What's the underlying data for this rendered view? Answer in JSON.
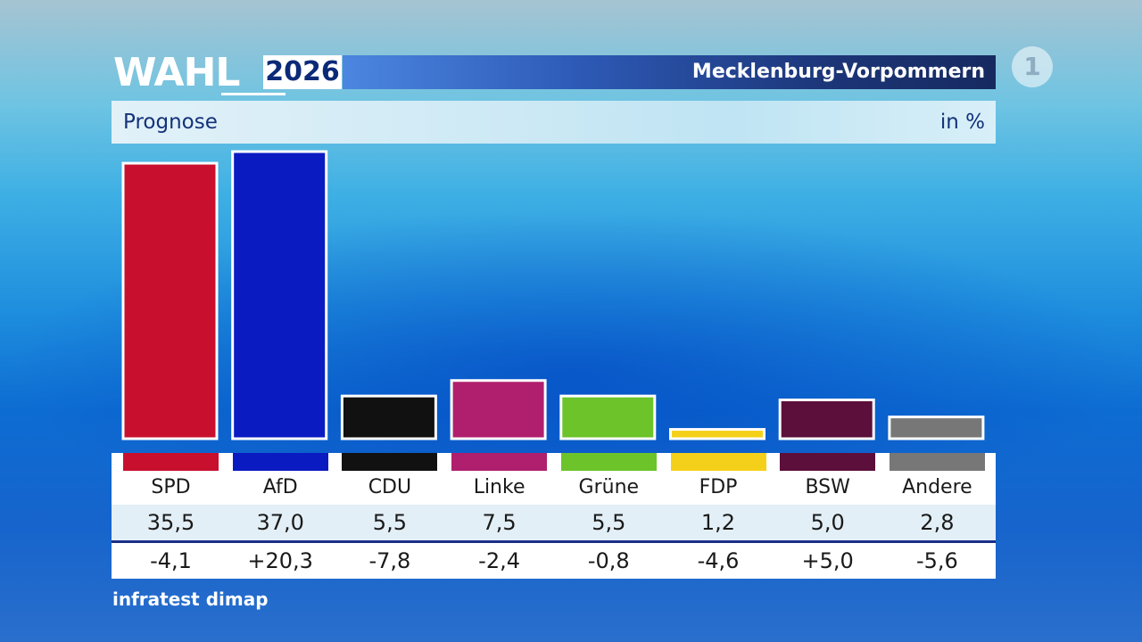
{
  "header": {
    "logo_word": "WAHL",
    "logo_year": "2026",
    "region": "Mecklenburg-Vorpommern",
    "broadcaster_logo": "1"
  },
  "subheader": {
    "label": "Prognose",
    "unit": "in %"
  },
  "source": "infratest dimap",
  "colors": {
    "SPD": "#c8102e",
    "AfD": "#0a1bc2",
    "CDU": "#111111",
    "Linke": "#b01f6e",
    "Grüne": "#6cc32a",
    "FDP": "#f5d01a",
    "BSW": "#5c0f3a",
    "Andere": "#777777"
  },
  "chart_data": {
    "type": "bar",
    "title": "Prognose",
    "ylabel": "in %",
    "categories": [
      "SPD",
      "AfD",
      "CDU",
      "Linke",
      "Grüne",
      "FDP",
      "BSW",
      "Andere"
    ],
    "values": [
      35.5,
      37.0,
      5.5,
      7.5,
      5.5,
      1.2,
      5.0,
      2.8
    ],
    "value_labels": [
      "35,5",
      "37,0",
      "5,5",
      "7,5",
      "5,5",
      "1,2",
      "5,0",
      "2,8"
    ],
    "changes": [
      -4.1,
      20.3,
      -7.8,
      -2.4,
      -0.8,
      -4.6,
      5.0,
      -5.6
    ],
    "change_labels": [
      "-4,1",
      "+20,3",
      "-7,8",
      "-2,4",
      "-0,8",
      "-4,6",
      "+5,0",
      "-5,6"
    ],
    "ylim": [
      0,
      37.0
    ],
    "grid": false,
    "legend": "none"
  }
}
